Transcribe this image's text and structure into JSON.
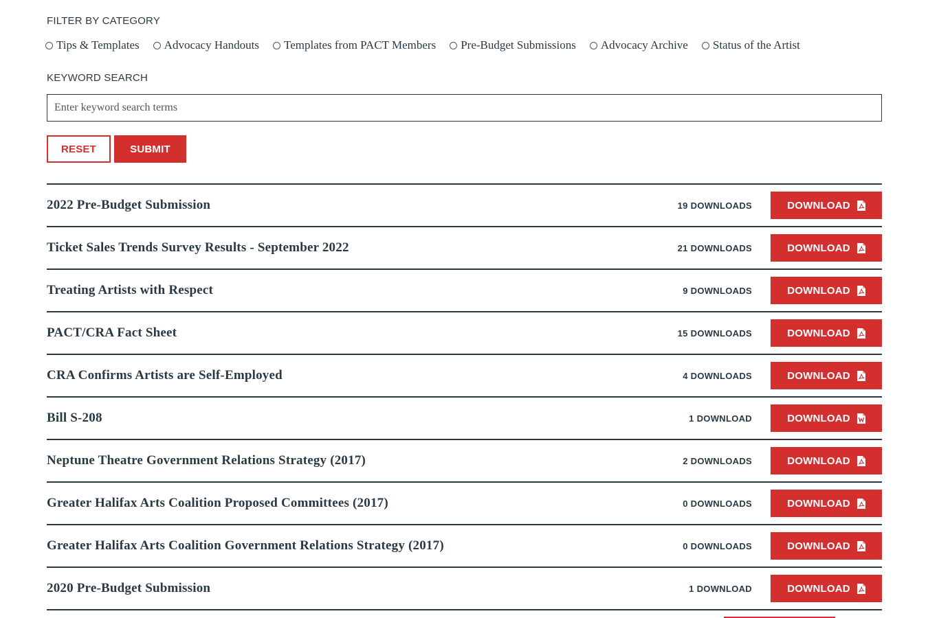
{
  "filter": {
    "label": "FILTER BY CATEGORY",
    "options": [
      "Tips & Templates",
      "Advocacy Handouts",
      "Templates from PACT Members",
      "Pre-Budget Submissions",
      "Advocacy Archive",
      "Status of the Artist"
    ]
  },
  "search": {
    "label": "KEYWORD SEARCH",
    "placeholder": "Enter keyword search terms",
    "value": ""
  },
  "buttons": {
    "reset": "RESET",
    "submit": "SUBMIT"
  },
  "colors": {
    "accent": "#d32f2f",
    "text": "#2a3a44"
  },
  "documents": [
    {
      "title": "2022 Pre-Budget Submission",
      "downloads": "19 DOWNLOADS",
      "action": "DOWNLOAD",
      "icon": "pdf-icon"
    },
    {
      "title": "Ticket Sales Trends Survey Results - September 2022",
      "downloads": "21 DOWNLOADS",
      "action": "DOWNLOAD",
      "icon": "pdf-icon"
    },
    {
      "title": "Treating Artists with Respect",
      "downloads": "9 DOWNLOADS",
      "action": "DOWNLOAD",
      "icon": "pdf-icon"
    },
    {
      "title": "PACT/CRA Fact Sheet",
      "downloads": "15 DOWNLOADS",
      "action": "DOWNLOAD",
      "icon": "pdf-icon"
    },
    {
      "title": "CRA Confirms Artists are Self-Employed",
      "downloads": "4 DOWNLOADS",
      "action": "DOWNLOAD",
      "icon": "pdf-icon"
    },
    {
      "title": "Bill S-208",
      "downloads": "1 DOWNLOAD",
      "action": "DOWNLOAD",
      "icon": "word-icon"
    },
    {
      "title": "Neptune Theatre Government Relations Strategy (2017)",
      "downloads": "2 DOWNLOADS",
      "action": "DOWNLOAD",
      "icon": "pdf-icon"
    },
    {
      "title": "Greater Halifax Arts Coalition Proposed Committees (2017)",
      "downloads": "0 DOWNLOADS",
      "action": "DOWNLOAD",
      "icon": "pdf-icon"
    },
    {
      "title": "Greater Halifax Arts Coalition Government Relations Strategy (2017)",
      "downloads": "0 DOWNLOADS",
      "action": "DOWNLOAD",
      "icon": "pdf-icon"
    },
    {
      "title": "2020 Pre-Budget Submission",
      "downloads": "1 DOWNLOAD",
      "action": "DOWNLOAD",
      "icon": "pdf-icon"
    }
  ]
}
